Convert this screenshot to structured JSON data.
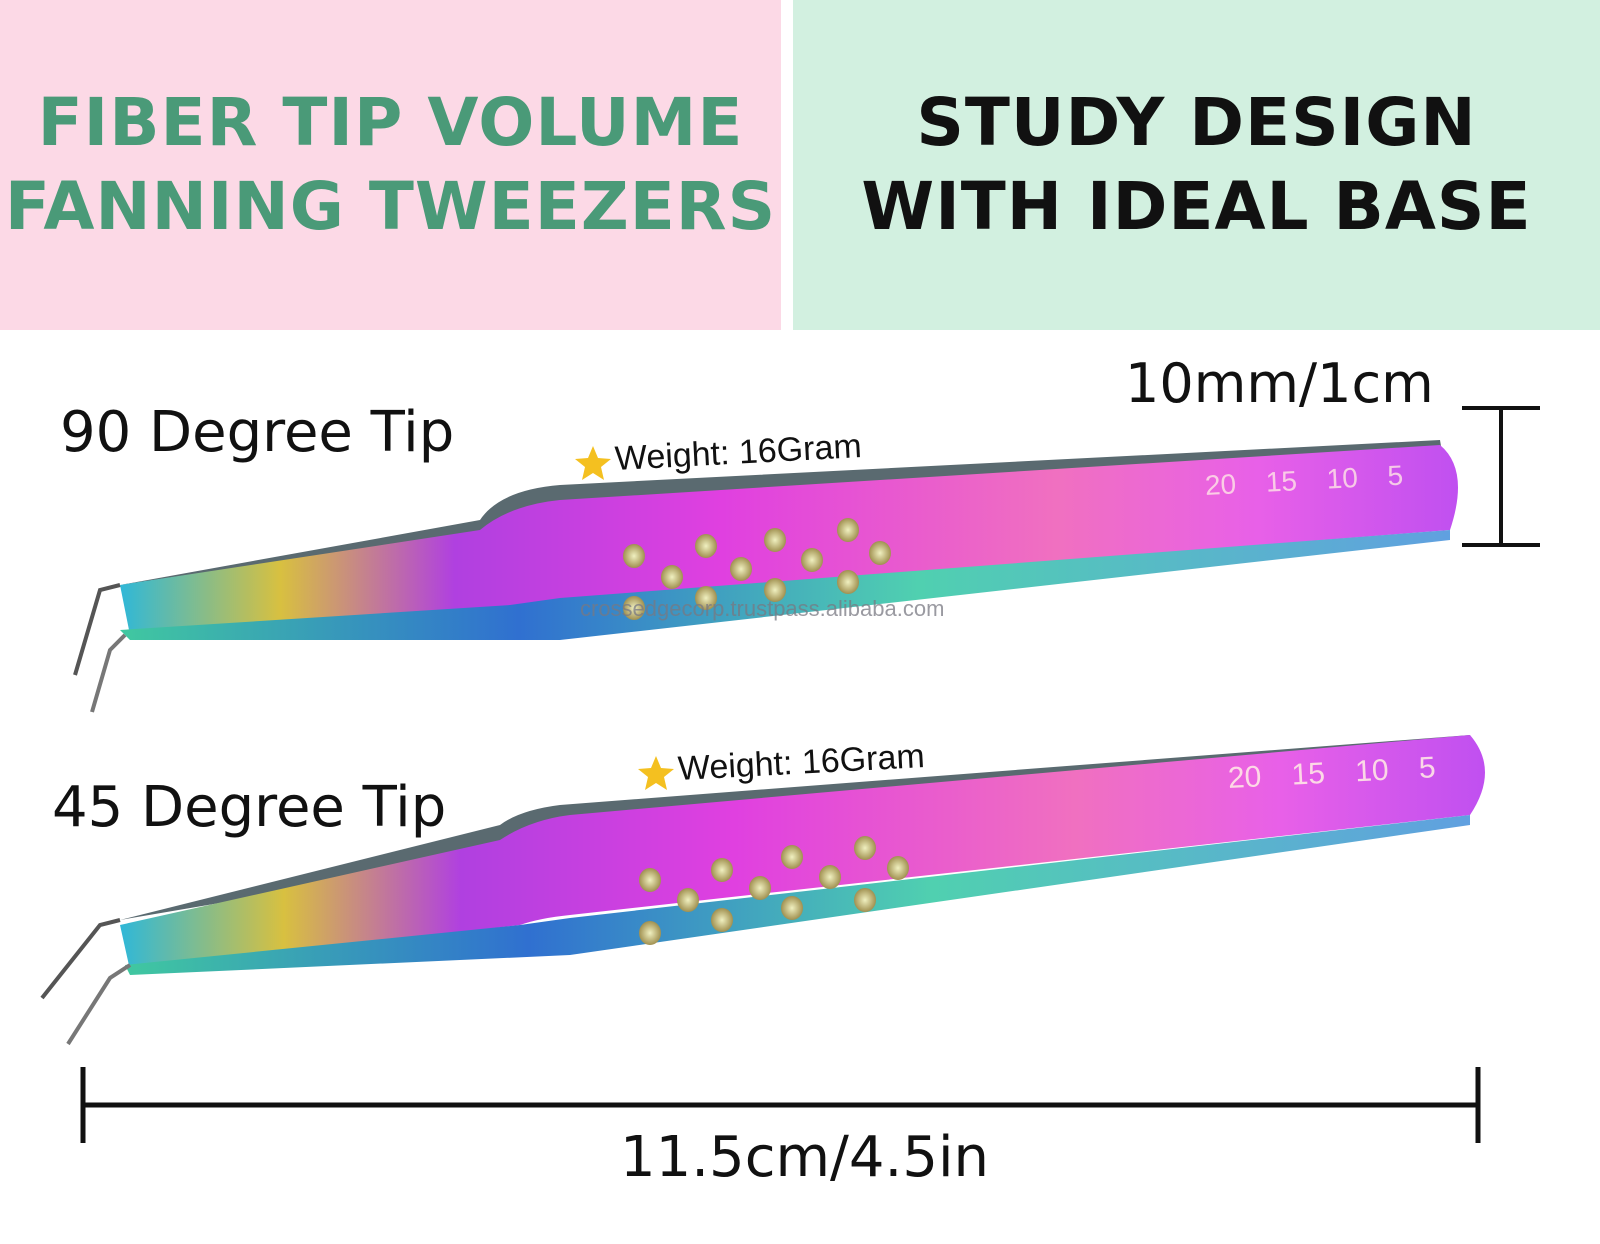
{
  "header": {
    "left_title_line1": "FIBER TIP VOLUME",
    "left_title_line2": "FANNING TWEEZERS",
    "right_title_line1": "STUDY DESIGN",
    "right_title_line2": "WITH IDEAL BASE"
  },
  "tweezers": [
    {
      "label": "90 Degree Tip",
      "weight": "Weight: 16Gram",
      "scale_marks": [
        "20",
        "15",
        "10",
        "5"
      ]
    },
    {
      "label": "45 Degree Tip",
      "weight": "Weight: 16Gram",
      "scale_marks": [
        "20",
        "15",
        "10",
        "5"
      ]
    }
  ],
  "watermark": "crossedgecorp.trustpass.alibaba.com",
  "dimensions": {
    "width_label": "10mm/1cm",
    "length_label": "11.5cm/4.5in"
  },
  "colors": {
    "pink_panel": "#fcd9e6",
    "green_panel": "#d2f0e0",
    "title_green": "#4a9a78"
  }
}
